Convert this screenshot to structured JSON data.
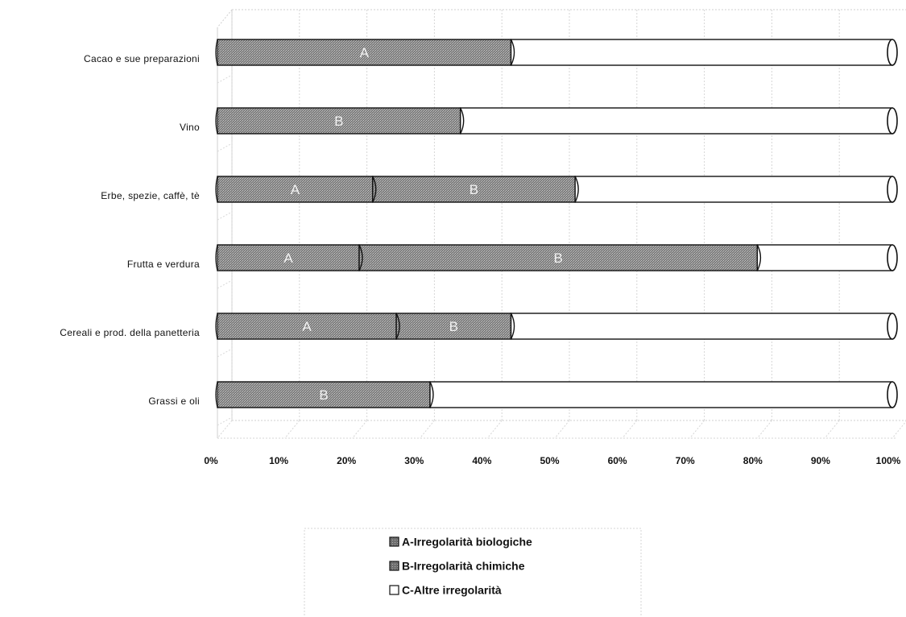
{
  "chart_data": {
    "type": "bar",
    "orientation": "horizontal",
    "stacked": "percent",
    "categories": [
      "Cacao e sue preparazioni",
      "Vino",
      "Erbe, spezie, caffè, tè",
      "Frutta e verdura",
      "Cereali e prod. della panetteria",
      "Grassi e oli"
    ],
    "series": [
      {
        "name": "A-Irregolarità biologiche",
        "key": "A",
        "values": [
          43.5,
          0,
          23,
          21,
          26.5,
          0
        ],
        "color": "#8a8a8a"
      },
      {
        "name": "B-Irregolarità chimiche",
        "key": "B",
        "values": [
          0,
          36,
          30,
          59,
          17,
          31.5
        ],
        "color": "#9a9a9a"
      },
      {
        "name": "C-Altre irregolarità",
        "key": "C",
        "values": [
          56.5,
          64,
          47,
          20,
          56.5,
          68.5
        ],
        "color": "#ffffff"
      }
    ],
    "segment_labels": [
      [
        "A",
        "",
        ""
      ],
      [
        "B",
        "",
        ""
      ],
      [
        "A",
        "B",
        ""
      ],
      [
        "A",
        "B",
        ""
      ],
      [
        "A",
        "B",
        ""
      ],
      [
        "B",
        "",
        ""
      ]
    ],
    "x_ticks": [
      "0%",
      "10%",
      "20%",
      "30%",
      "40%",
      "50%",
      "60%",
      "70%",
      "80%",
      "90%",
      "100%"
    ],
    "xlim": [
      0,
      100
    ],
    "grid": true,
    "legend_position": "bottom-center"
  }
}
